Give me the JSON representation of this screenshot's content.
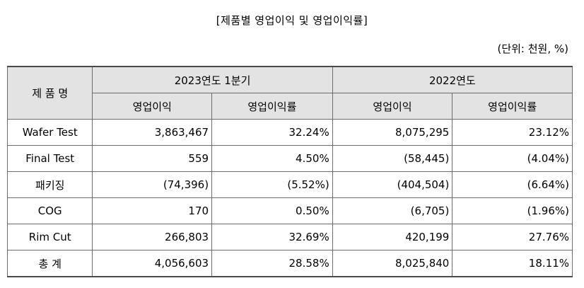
{
  "title": "[제품별 영업이익 및 영업이익률]",
  "unit": "(단위: 천원, %)",
  "table": {
    "header": {
      "product": "제 품 명",
      "period1": "2023연도 1분기",
      "period2": "2022연도",
      "op_profit": "영업이익",
      "op_margin": "영업이익률"
    },
    "rows": [
      {
        "name": "Wafer Test",
        "p1_profit": "3,863,467",
        "p1_margin": "32.24%",
        "p2_profit": "8,075,295",
        "p2_margin": "23.12%"
      },
      {
        "name": "Final Test",
        "p1_profit": "559",
        "p1_margin": "4.50%",
        "p2_profit": "(58,445)",
        "p2_margin": "(4.04%)"
      },
      {
        "name": "패키징",
        "p1_profit": "(74,396)",
        "p1_margin": "(5.52%)",
        "p2_profit": "(404,504)",
        "p2_margin": "(6.64%)"
      },
      {
        "name": "COG",
        "p1_profit": "170",
        "p1_margin": "0.50%",
        "p2_profit": "(6,705)",
        "p2_margin": "(1.96%)"
      },
      {
        "name": "Rim Cut",
        "p1_profit": "266,803",
        "p1_margin": "32.69%",
        "p2_profit": "420,199",
        "p2_margin": "27.76%"
      },
      {
        "name": "총 계",
        "p1_profit": "4,056,603",
        "p1_margin": "28.58%",
        "p2_profit": "8,025,840",
        "p2_margin": "18.11%"
      }
    ]
  }
}
